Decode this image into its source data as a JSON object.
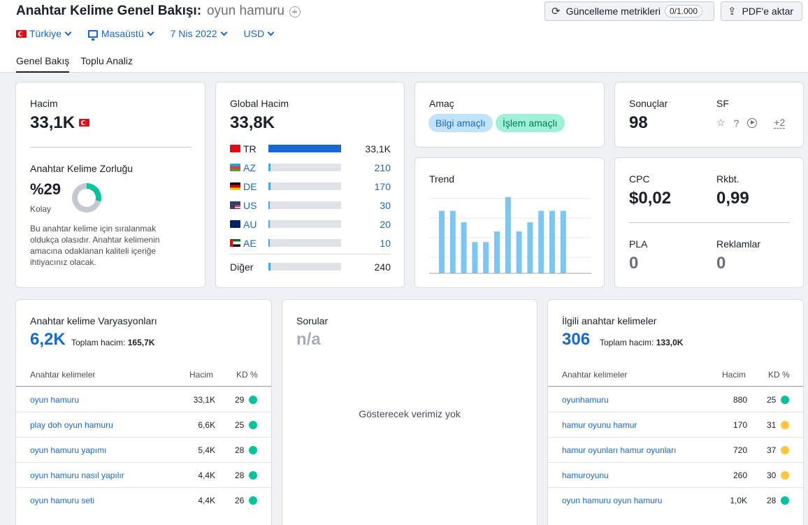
{
  "header": {
    "title": "Anahtar Kelime Genel Bakışı:",
    "keyword": "oyun hamuru",
    "update_button": "Güncelleme metrikleri",
    "quota": "0/1.000",
    "pdf_button": "PDF'e aktar"
  },
  "filters": {
    "country": "Türkiye",
    "device": "Masaüstü",
    "date": "7 Nis 2022",
    "currency": "USD"
  },
  "tabs": [
    "Genel Bakış",
    "Toplu Analiz"
  ],
  "volume": {
    "label": "Hacim",
    "value": "33,1K",
    "kd_label": "Anahtar Kelime Zorluğu",
    "kd_value": "%29",
    "kd_level": "Kolay",
    "kd_percent": 29,
    "kd_description": "Bu anahtar kelime için sıralanmak oldukça olasıdır. Anahtar kelimenin amacına odaklanan kaliteli içeriğe ihtiyacınız olacak."
  },
  "global_volume": {
    "label": "Global Hacim",
    "value": "33,8K",
    "countries": [
      {
        "code": "TR",
        "value": "33,1K",
        "share": 1.0
      },
      {
        "code": "AZ",
        "value": "210",
        "share": 0.03
      },
      {
        "code": "DE",
        "value": "170",
        "share": 0.025
      },
      {
        "code": "US",
        "value": "30",
        "share": 0.02
      },
      {
        "code": "AU",
        "value": "20",
        "share": 0.02
      },
      {
        "code": "AE",
        "value": "10",
        "share": 0.02
      }
    ],
    "other": {
      "label": "Diğer",
      "value": "240",
      "share": 0.03
    }
  },
  "intent": {
    "label": "Amaç",
    "tags": [
      "Bilgi amaçlı",
      "İşlem amaçlı"
    ]
  },
  "results": {
    "label": "Sonuçlar",
    "value": "98",
    "sf_label": "SF",
    "sf_more": "+2",
    "icons": [
      "star-icon",
      "question-icon",
      "play-icon"
    ]
  },
  "trend": {
    "label": "Trend",
    "chart_data": {
      "type": "bar",
      "values": [
        0.82,
        0.82,
        0.67,
        0.41,
        0.41,
        0.55,
        1.0,
        0.55,
        0.67,
        0.82,
        0.82,
        0.82
      ]
    }
  },
  "cpc": {
    "cpc_label": "CPC",
    "cpc_value": "$0,02",
    "comp_label": "Rkbt.",
    "comp_value": "0,99",
    "pla_label": "PLA",
    "pla_value": "0",
    "ads_label": "Reklamlar",
    "ads_value": "0"
  },
  "variations": {
    "title": "Anahtar kelime Varyasyonları",
    "count": "6,2K",
    "total_label": "Toplam hacim:",
    "total_value": "165,7K",
    "col_keyword": "Anahtar kelimeler",
    "col_volume": "Hacim",
    "col_kd": "KD %",
    "rows": [
      {
        "kw": "oyun hamuru",
        "vol": "33,1K",
        "kd": "29",
        "color": "#00c49c"
      },
      {
        "kw": "play doh oyun hamuru",
        "vol": "6,6K",
        "kd": "25",
        "color": "#00c49c"
      },
      {
        "kw": "oyun hamuru yapımı",
        "vol": "5,4K",
        "kd": "28",
        "color": "#00c49c"
      },
      {
        "kw": "oyun hamuru nasıl yapılır",
        "vol": "4,4K",
        "kd": "28",
        "color": "#00c49c"
      },
      {
        "kw": "oyun hamuru seti",
        "vol": "4,4K",
        "kd": "26",
        "color": "#00c49c"
      }
    ]
  },
  "questions": {
    "title": "Sorular",
    "value": "n/a",
    "empty": "Gösterecek verimiz yok"
  },
  "related": {
    "title": "İlgili anahtar kelimeler",
    "count": "306",
    "total_label": "Toplam hacim:",
    "total_value": "133,0K",
    "col_keyword": "Anahtar kelimeler",
    "col_volume": "Hacim",
    "col_kd": "KD %",
    "rows": [
      {
        "kw": "oyunhamuru",
        "vol": "880",
        "kd": "25",
        "color": "#00c49c"
      },
      {
        "kw": "hamur oyunu hamur",
        "vol": "170",
        "kd": "31",
        "color": "#ffc63d"
      },
      {
        "kw": "hamur oyunları hamur oyunları",
        "vol": "720",
        "kd": "37",
        "color": "#ffc63d"
      },
      {
        "kw": "hamuroyunu",
        "vol": "260",
        "kd": "30",
        "color": "#ffc63d"
      },
      {
        "kw": "oyun hamuru oyun hamuru",
        "vol": "1,0K",
        "kd": "28",
        "color": "#00c49c"
      }
    ]
  }
}
